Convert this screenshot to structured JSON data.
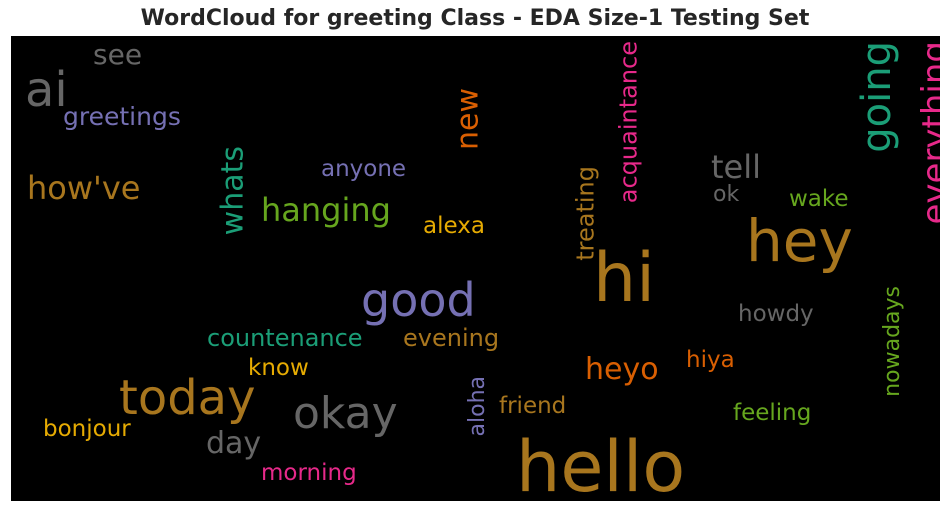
{
  "chart_data": {
    "type": "wordcloud",
    "title": "WordCloud for greeting Class - EDA Size-1 Testing Set",
    "background": "#000000",
    "words": [
      {
        "text": "hello",
        "color": "#a8761e",
        "rotate": false
      },
      {
        "text": "hi",
        "color": "#a8761e",
        "rotate": false
      },
      {
        "text": "hey",
        "color": "#a8761e",
        "rotate": false
      },
      {
        "text": "today",
        "color": "#a8761e",
        "rotate": false
      },
      {
        "text": "good",
        "color": "#7570b3",
        "rotate": false
      },
      {
        "text": "okay",
        "color": "#666666",
        "rotate": false
      },
      {
        "text": "ai",
        "color": "#666666",
        "rotate": false
      },
      {
        "text": "going",
        "color": "#1b9e77",
        "rotate": true
      },
      {
        "text": "everything",
        "color": "#e7298a",
        "rotate": true
      },
      {
        "text": "how've",
        "color": "#a8761e",
        "rotate": false
      },
      {
        "text": "hanging",
        "color": "#66a61e",
        "rotate": false
      },
      {
        "text": "new",
        "color": "#d95f02",
        "rotate": true
      },
      {
        "text": "heyo",
        "color": "#d95f02",
        "rotate": false
      },
      {
        "text": "tell",
        "color": "#666666",
        "rotate": false
      },
      {
        "text": "whats",
        "color": "#1b9e77",
        "rotate": true
      },
      {
        "text": "day",
        "color": "#666666",
        "rotate": false
      },
      {
        "text": "see",
        "color": "#666666",
        "rotate": false
      },
      {
        "text": "greetings",
        "color": "#7570b3",
        "rotate": false
      },
      {
        "text": "acquaintance",
        "color": "#e7298a",
        "rotate": true
      },
      {
        "text": "treating",
        "color": "#a8761e",
        "rotate": true
      },
      {
        "text": "countenance",
        "color": "#1b9e77",
        "rotate": false
      },
      {
        "text": "evening",
        "color": "#a8761e",
        "rotate": false
      },
      {
        "text": "anyone",
        "color": "#7570b3",
        "rotate": false
      },
      {
        "text": "alexa",
        "color": "#e6ab02",
        "rotate": false
      },
      {
        "text": "morning",
        "color": "#e7298a",
        "rotate": false
      },
      {
        "text": "bonjour",
        "color": "#e6ab02",
        "rotate": false
      },
      {
        "text": "know",
        "color": "#e6ab02",
        "rotate": false
      },
      {
        "text": "friend",
        "color": "#a8761e",
        "rotate": false
      },
      {
        "text": "aloha",
        "color": "#7570b3",
        "rotate": true
      },
      {
        "text": "feeling",
        "color": "#66a61e",
        "rotate": false
      },
      {
        "text": "nowadays",
        "color": "#66a61e",
        "rotate": true
      },
      {
        "text": "howdy",
        "color": "#666666",
        "rotate": false
      },
      {
        "text": "hiya",
        "color": "#d95f02",
        "rotate": false
      },
      {
        "text": "wake",
        "color": "#66a61e",
        "rotate": false
      },
      {
        "text": "ok",
        "color": "#666666",
        "rotate": false
      }
    ]
  }
}
